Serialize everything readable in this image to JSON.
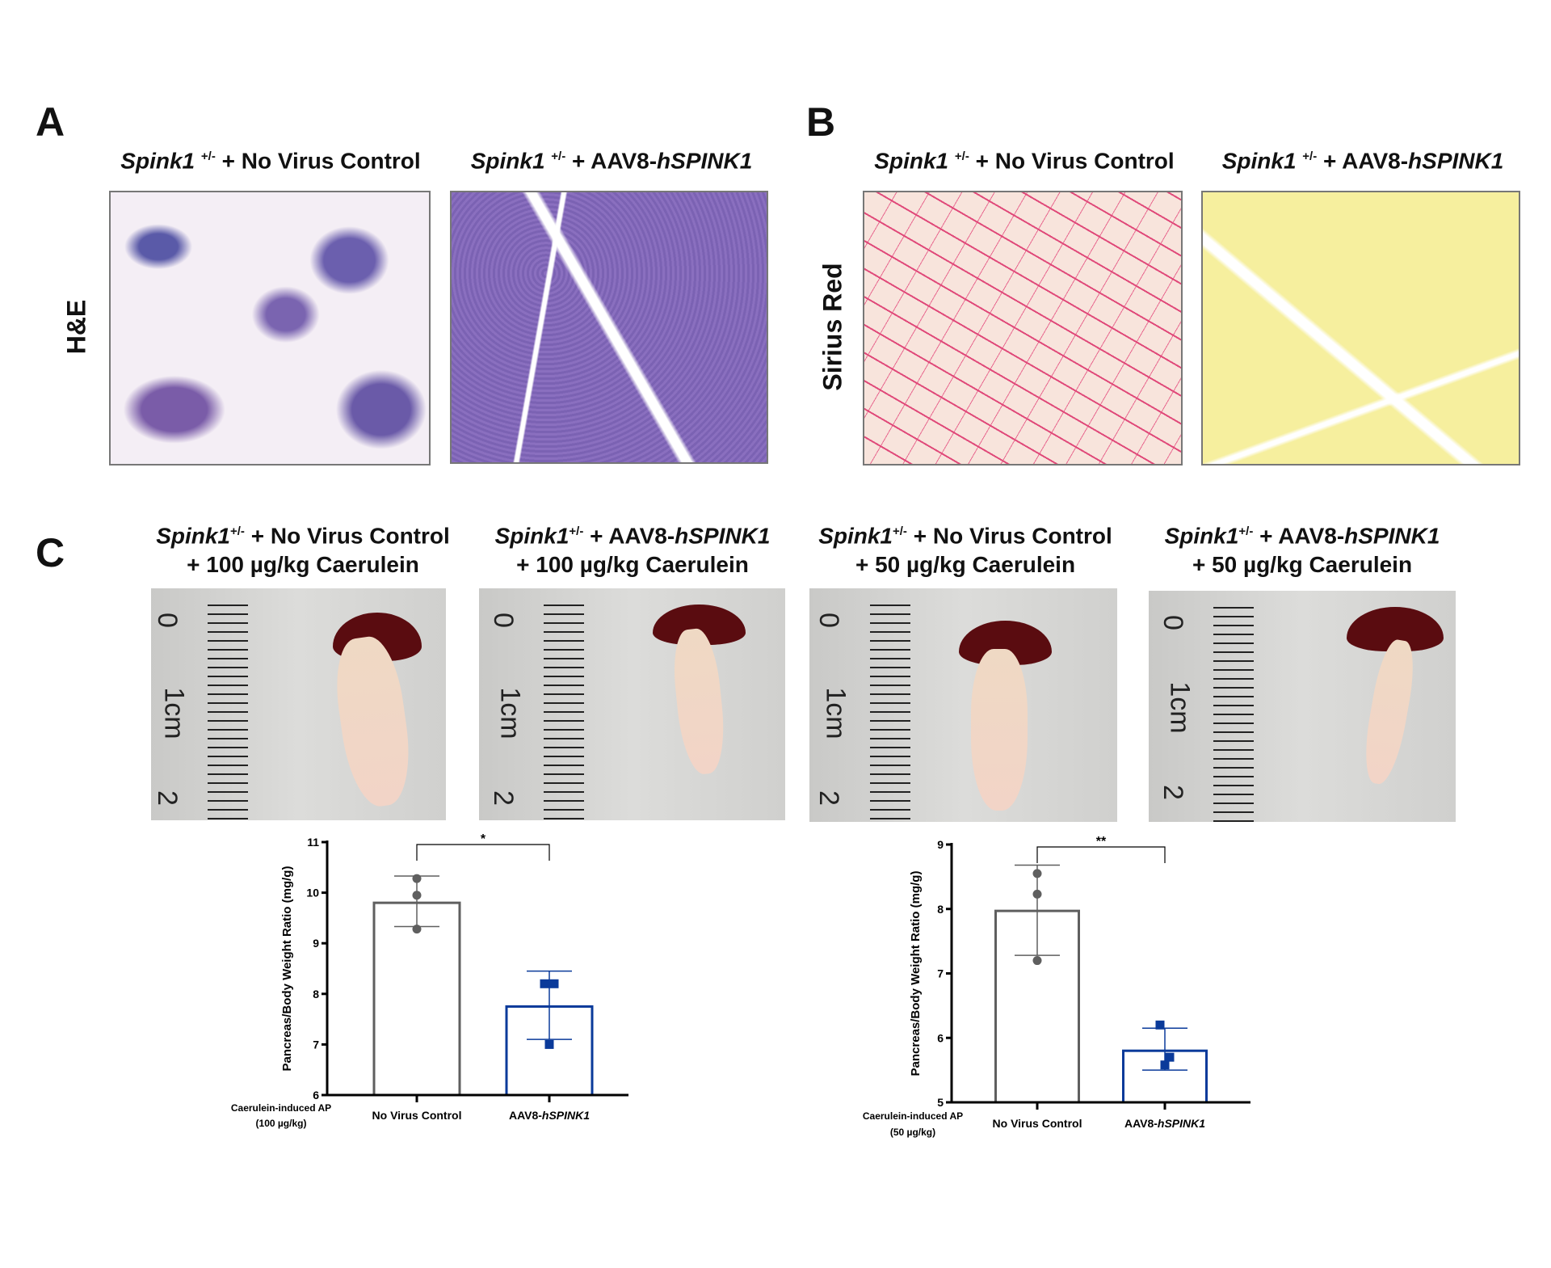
{
  "panels": {
    "A": {
      "letter": "A",
      "row_label": "H&E",
      "titles": [
        {
          "gene": "Spink1",
          "sup": "+/-",
          "rest": " + No Virus Control"
        },
        {
          "gene": "Spink1",
          "sup": "+/-",
          "rest": " + AAV8-",
          "rest_italic": "hSPINK1"
        }
      ]
    },
    "B": {
      "letter": "B",
      "row_label": "Sirius Red",
      "titles": [
        {
          "gene": "Spink1",
          "sup": "+/-",
          "rest": " + No Virus Control"
        },
        {
          "gene": "Spink1",
          "sup": "+/-",
          "rest": " + AAV8-",
          "rest_italic": "hSPINK1"
        }
      ]
    },
    "C": {
      "letter": "C",
      "titles": [
        {
          "gene": "Spink1",
          "sup": "+/-",
          "rest": " + No Virus Control",
          "line2": "+ 100 µg/kg Caerulein"
        },
        {
          "gene": "Spink1",
          "sup": "+/-",
          "rest": " + AAV8-",
          "rest_italic": "hSPINK1",
          "line2": "+ 100 µg/kg Caerulein"
        },
        {
          "gene": "Spink1",
          "sup": "+/-",
          "rest": " + No Virus Control",
          "line2": "+ 50 µg/kg Caerulein"
        },
        {
          "gene": "Spink1",
          "sup": "+/-",
          "rest": " + AAV8-",
          "rest_italic": "hSPINK1",
          "line2": "+ 50 µg/kg Caerulein"
        }
      ],
      "ruler_labels": [
        "0",
        "1cm",
        "2"
      ]
    }
  },
  "colors": {
    "control": "#5f5f5f",
    "treated": "#0a3a9a"
  },
  "chart_data": [
    {
      "type": "bar",
      "ylabel": "Pancreas/Body Weight Ratio (mg/g)",
      "ylim": [
        6,
        11
      ],
      "yticks": [
        6,
        7,
        8,
        9,
        10,
        11
      ],
      "group_label": [
        "Caerulein-induced AP",
        "(100 µg/kg)"
      ],
      "categories": [
        "No Virus Control",
        "AAV8-hSPINK1"
      ],
      "category_parts": [
        [
          "No Virus Control",
          ""
        ],
        [
          "AAV8-",
          "hSPINK1"
        ]
      ],
      "means": [
        9.8,
        7.75
      ],
      "error": [
        [
          9.33,
          10.33
        ],
        [
          7.1,
          8.45
        ]
      ],
      "points": [
        [
          10.28,
          9.95,
          9.28
        ],
        [
          8.2,
          8.2,
          7.0
        ]
      ],
      "markers": [
        "circle",
        "square"
      ],
      "significance": "*"
    },
    {
      "type": "bar",
      "ylabel": "Pancreas/Body Weight Ratio (mg/g)",
      "ylim": [
        5,
        9
      ],
      "yticks": [
        5,
        6,
        7,
        8,
        9
      ],
      "group_label": [
        "Caerulein-induced AP",
        "(50 µg/kg)"
      ],
      "categories": [
        "No Virus Control",
        "AAV8-hSPINK1"
      ],
      "category_parts": [
        [
          "No Virus Control",
          ""
        ],
        [
          "AAV8-",
          "hSPINK1"
        ]
      ],
      "means": [
        7.97,
        5.8
      ],
      "error": [
        [
          7.28,
          8.68
        ],
        [
          5.5,
          6.15
        ]
      ],
      "points": [
        [
          8.55,
          8.23,
          7.2
        ],
        [
          6.2,
          5.7,
          5.58
        ]
      ],
      "markers": [
        "circle",
        "square"
      ],
      "significance": "**"
    }
  ]
}
